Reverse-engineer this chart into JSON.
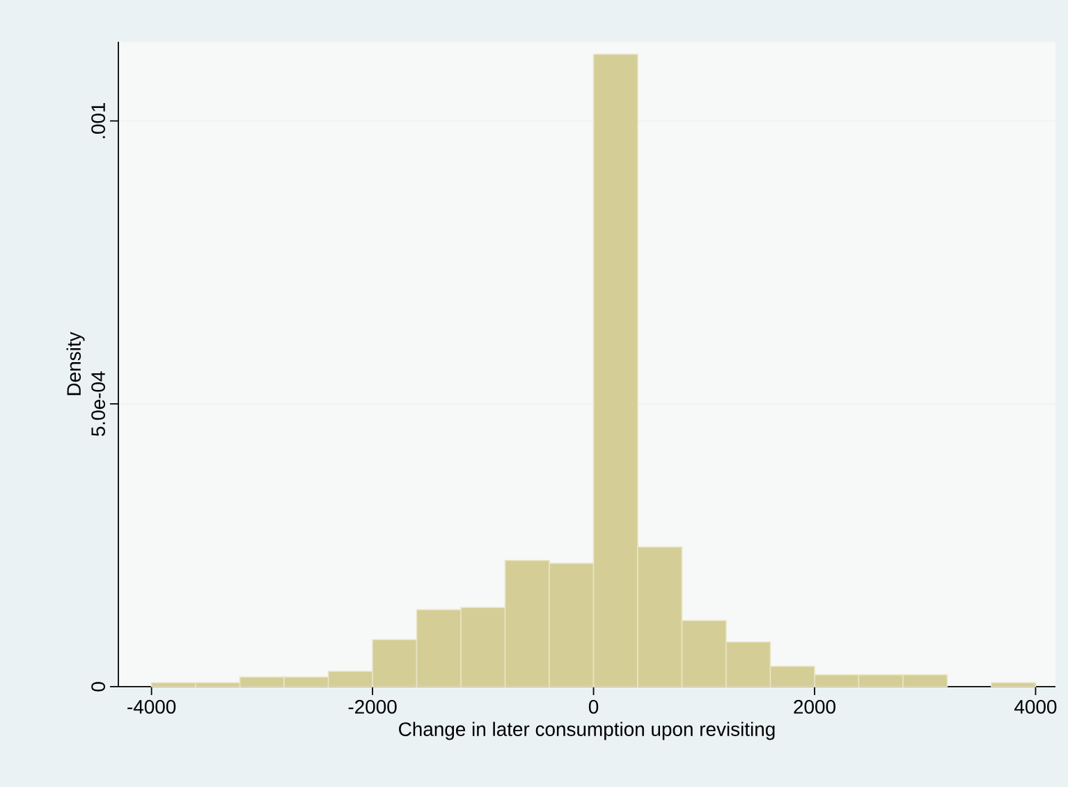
{
  "chart_data": {
    "type": "histogram",
    "xlabel": "Change in later consumption upon revisiting",
    "ylabel": "Density",
    "bins": [
      -4000,
      -3600,
      -3200,
      -2800,
      -2400,
      -2000,
      -1600,
      -1200,
      -800,
      -400,
      0,
      400,
      800,
      1200,
      1600,
      2000,
      2400,
      2800,
      3200,
      3600,
      4000
    ],
    "values": [
      7e-06,
      7e-06,
      1.7e-05,
      1.7e-05,
      2.7e-05,
      8.3e-05,
      0.000136,
      0.00014,
      0.000223,
      0.000218,
      0.001118,
      0.000247,
      0.000117,
      7.9e-05,
      3.6e-05,
      2.1e-05,
      2.1e-05,
      2.1e-05,
      0,
      7e-06
    ],
    "color": "#d4cd96",
    "xlim": [
      -4300,
      4180
    ],
    "ylim": [
      0,
      0.00114
    ],
    "xticks": [
      -4000,
      -2000,
      0,
      2000,
      4000
    ],
    "yticks": [
      0,
      {
        "value": 0.0005,
        "label": "5.0e-04"
      },
      {
        "value": 0.001,
        "label": ".001"
      }
    ],
    "grid": "y"
  }
}
